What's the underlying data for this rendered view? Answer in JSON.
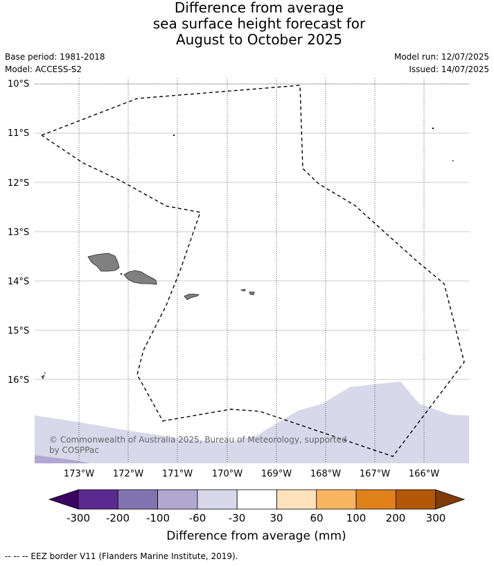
{
  "title": {
    "line1": "Difference from average",
    "line2": "sea surface height forecast for",
    "line3": "August to October 2025"
  },
  "meta": {
    "base_period": "Base period: 1981-2018",
    "model": "Model: ACCESS-S2",
    "model_run": "Model run: 12/07/2025",
    "issued": "Issued: 14/07/2025"
  },
  "map": {
    "lat_labels": [
      "10°S",
      "11°S",
      "12°S",
      "13°S",
      "14°S",
      "15°S",
      "16°S"
    ],
    "lon_labels": [
      "173°W",
      "172°W",
      "171°W",
      "170°W",
      "169°W",
      "168°W",
      "167°W",
      "166°W"
    ],
    "copyright_line1": "© Commonwealth of Australia 2025, Bureau of Meteorology, supported",
    "copyright_line2": "by COSPPac",
    "colors": {
      "land": "#808080",
      "anomaly_-30_-60": "#d8d8ea",
      "anomaly_-60_-100": "#b1a8d2"
    }
  },
  "colorbar": {
    "title": "Difference from average (mm)",
    "ticks": [
      "-300",
      "-200",
      "-100",
      "-60",
      "-30",
      "30",
      "60",
      "100",
      "200",
      "300"
    ],
    "colors": [
      "#3a0462",
      "#5b2a91",
      "#8274b1",
      "#b1a8d2",
      "#d8d8ea",
      "#ffffff",
      "#fde2bb",
      "#f9b55f",
      "#e0811a",
      "#b35806",
      "#7f3b08"
    ]
  },
  "footer": {
    "legend_line": "--  --  -- EEZ border V11 (Flanders Marine Institute, 2019)."
  }
}
